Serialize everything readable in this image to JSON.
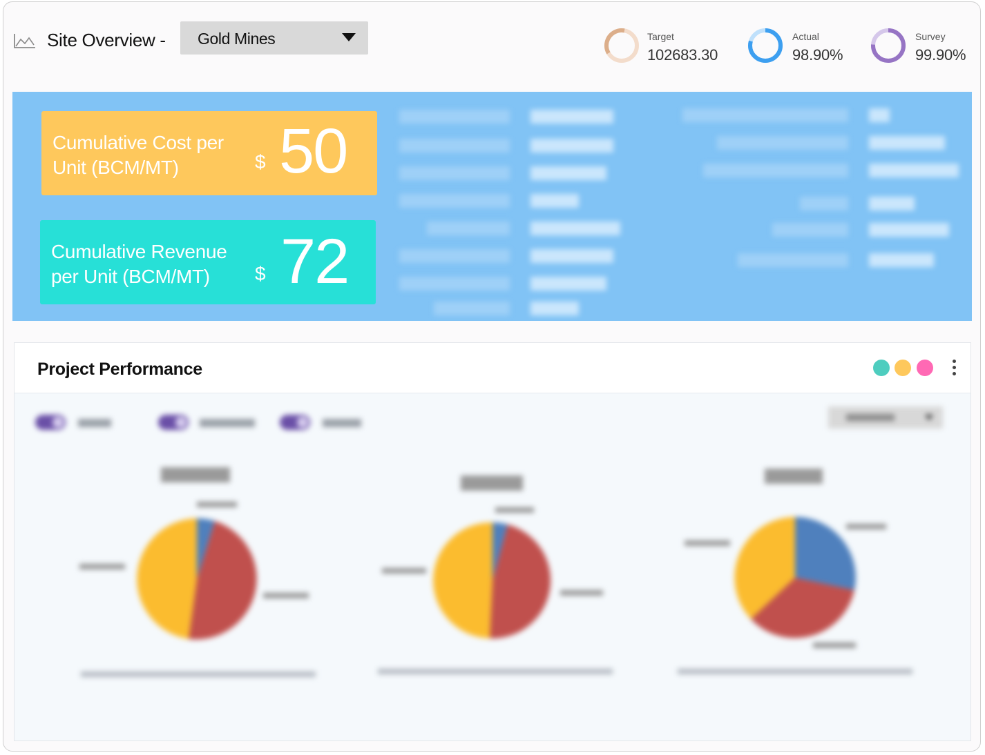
{
  "header": {
    "title": "Site Overview -",
    "site_select": {
      "value": "Gold Mines"
    },
    "stats": [
      {
        "label": "Target",
        "value": "102683.30",
        "color": "#e8c4a8"
      },
      {
        "label": "Actual",
        "value": "98.90%",
        "color": "#4aa3ee"
      },
      {
        "label": "Survey",
        "value": "99.90%",
        "color": "#9f80c9"
      }
    ]
  },
  "kpis": {
    "cost": {
      "label_line1": "Cumulative Cost per",
      "label_line2": "Unit (BCM/MT)",
      "currency": "$",
      "value": "50"
    },
    "revenue": {
      "label_line1": "Cumulative Revenue",
      "label_line2": "per Unit (BCM/MT)",
      "currency": "$",
      "value": "72"
    }
  },
  "performance": {
    "title": "Project Performance",
    "legend_dot_colors": [
      "#4ecdbf",
      "#fec85c",
      "#ff69b4"
    ],
    "pie_colors": {
      "target": "#4f80bd",
      "estimated": "#c0504d",
      "survey": "#fbbc2f"
    }
  }
}
